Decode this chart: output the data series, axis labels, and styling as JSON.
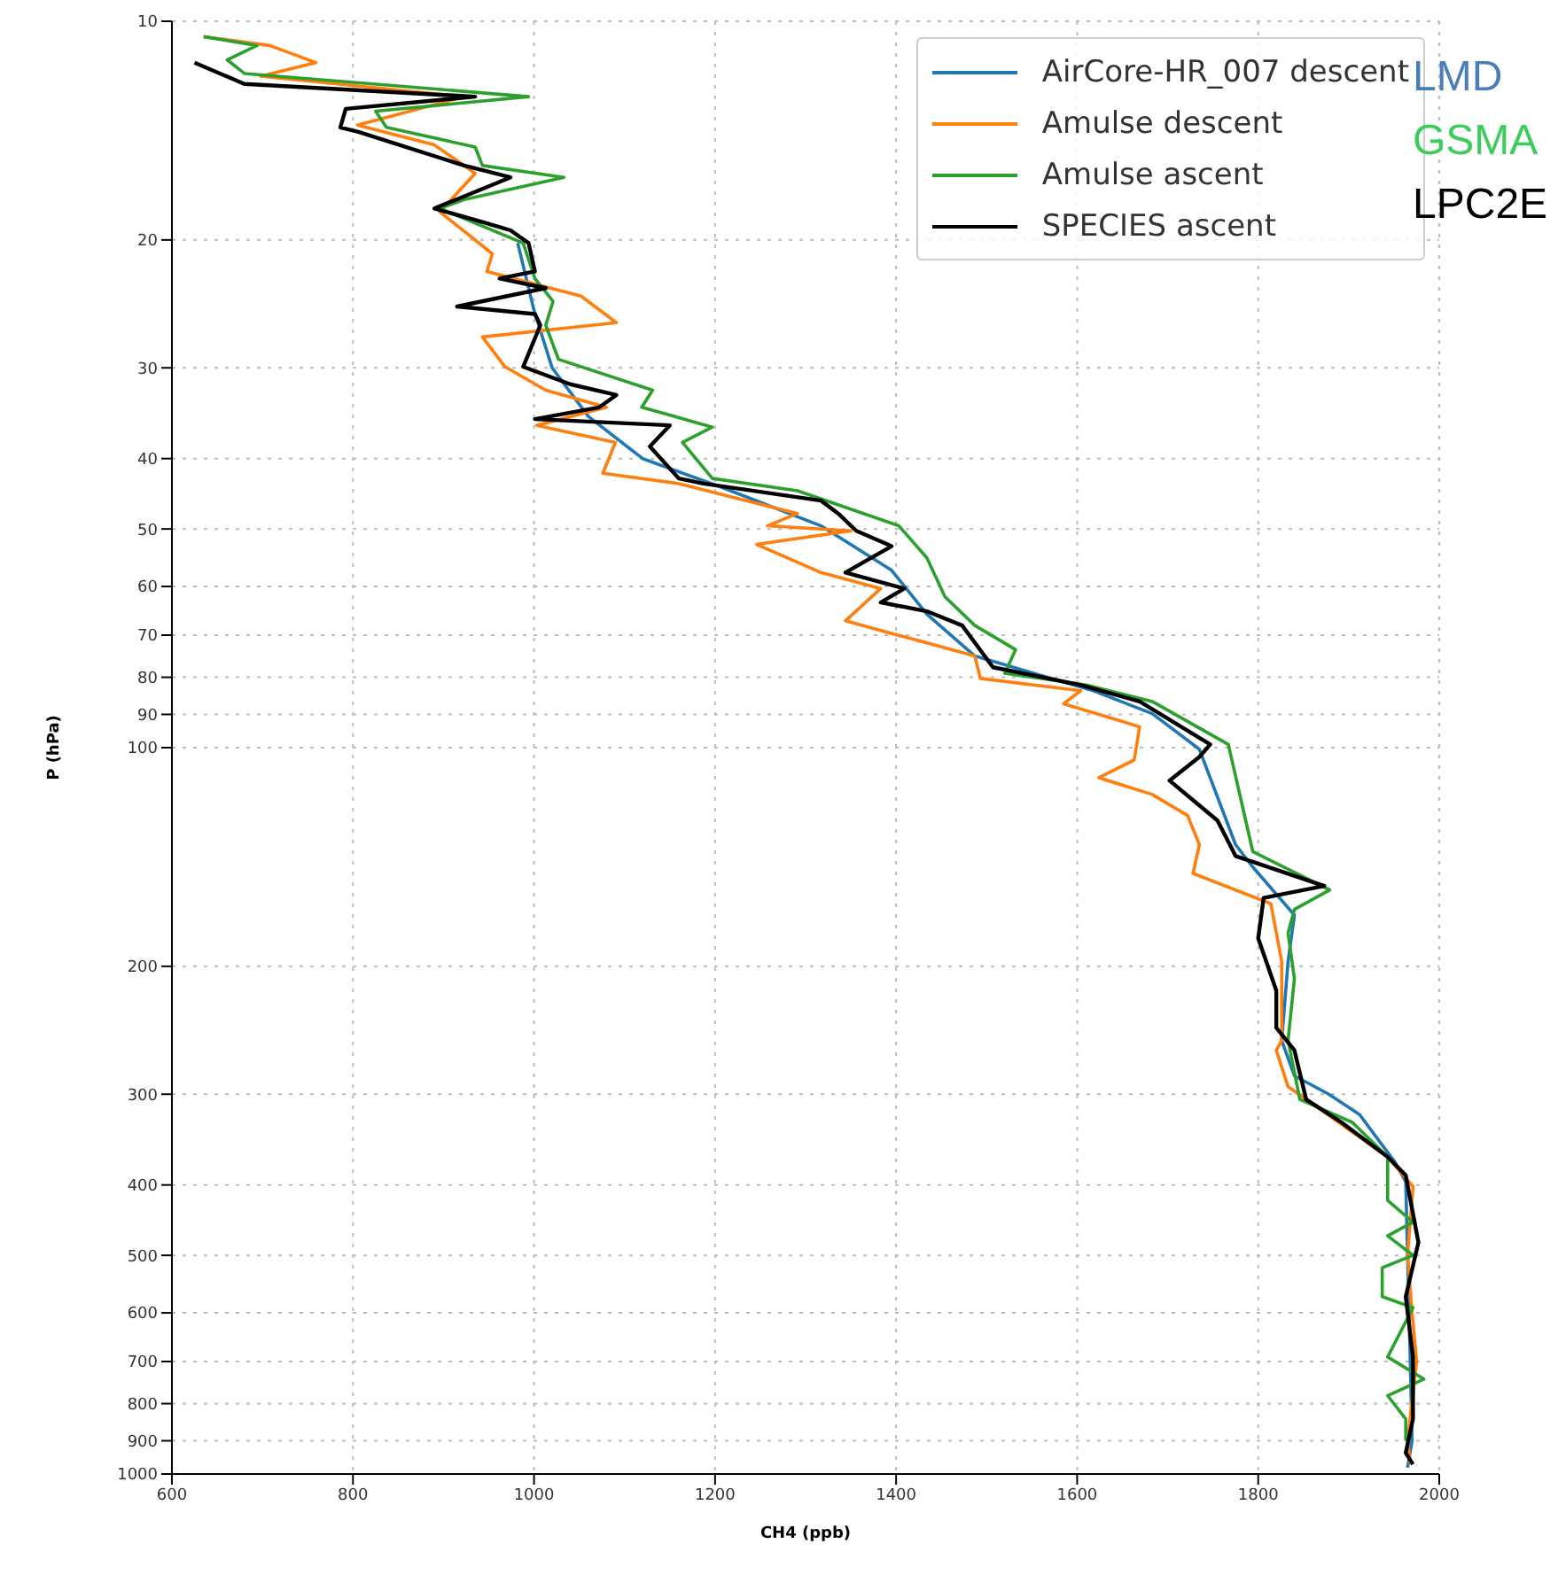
{
  "chart_data": {
    "type": "line",
    "xlabel": "CH4 (ppb)",
    "ylabel": "P (hPa)",
    "xlim": [
      600,
      2000
    ],
    "xticks": [
      600,
      800,
      1000,
      1200,
      1400,
      1600,
      1800,
      2000
    ],
    "ylim": [
      1000,
      10
    ],
    "yticks": [
      10,
      20,
      30,
      40,
      50,
      60,
      70,
      80,
      90,
      100,
      200,
      300,
      400,
      500,
      600,
      700,
      800,
      900,
      1000
    ],
    "log": "y",
    "grid": true,
    "legend": "top right",
    "annotations": [
      "LMD",
      "GSMA",
      "LPC2E"
    ],
    "series": [
      {
        "name": "AirCore-HR_007 descent",
        "color": "#1f77b4",
        "x": [
          982,
          1000,
          1020,
          1060,
          1120,
          1207,
          1317,
          1395,
          1434,
          1487,
          1618,
          1683,
          1735,
          1775,
          1794,
          1840,
          1833,
          1826,
          1840,
          1878,
          1912,
          1951,
          1963,
          1965,
          1968,
          1970,
          1965
        ],
        "values": [
          20.2,
          25,
          30,
          35,
          40,
          43.8,
          49.5,
          57,
          65.5,
          74.8,
          83.5,
          89.8,
          100.5,
          136,
          146,
          170,
          197,
          253,
          283,
          300,
          320,
          372,
          396,
          500,
          700,
          900,
          980
        ]
      },
      {
        "name": "Amulse descent",
        "color": "#ff7f0e",
        "x": [
          635,
          708,
          759,
          698,
          923,
          805,
          890,
          935,
          896,
          954,
          948,
          1052,
          1091,
          943,
          968,
          1013,
          1080,
          1003,
          1090,
          1076,
          1160,
          1291,
          1258,
          1350,
          1246,
          1317,
          1383,
          1344,
          1487,
          1493,
          1604,
          1585,
          1669,
          1663,
          1624,
          1683,
          1722,
          1735,
          1728,
          1814,
          1826,
          1826,
          1820,
          1833,
          1943,
          1971,
          1965,
          1970,
          1975,
          1965,
          1968
        ],
        "values": [
          10.5,
          10.8,
          11.4,
          11.9,
          12.7,
          13.9,
          14.8,
          16.2,
          18.3,
          20.9,
          22.1,
          23.9,
          26,
          27.2,
          29.9,
          32.2,
          34,
          36,
          38,
          41.9,
          43.3,
          47.6,
          49.5,
          50.3,
          52.5,
          57.4,
          60.4,
          66.9,
          74.8,
          80.3,
          83.5,
          87,
          93.6,
          104,
          110,
          116,
          124,
          136,
          149,
          164,
          197,
          253,
          261,
          293,
          366,
          402,
          500,
          600,
          700,
          900,
          970
        ]
      },
      {
        "name": "Amulse ascent",
        "color": "#2ca02c",
        "x": [
          635,
          694,
          661,
          680,
          994,
          825,
          837,
          935,
          943,
          1033,
          923,
          896,
          988,
          1001,
          1021,
          1013,
          1027,
          1131,
          1119,
          1197,
          1164,
          1197,
          1291,
          1403,
          1434,
          1454,
          1487,
          1532,
          1520,
          1610,
          1683,
          1767,
          1794,
          1879,
          1840,
          1833,
          1840,
          1833,
          1846,
          1904,
          1943,
          1943,
          1971,
          1943,
          1971,
          1937,
          1937,
          1971,
          1943,
          1983,
          1943,
          1963,
          1963
        ],
        "values": [
          10.5,
          10.8,
          11.3,
          11.8,
          12.7,
          13.3,
          14,
          14.9,
          15.8,
          16.4,
          17.6,
          18.1,
          20.2,
          22.6,
          24.3,
          26.2,
          29.2,
          32.2,
          34,
          36.2,
          38,
          42.6,
          44.3,
          49.5,
          54.8,
          62,
          67.9,
          73.3,
          79,
          82,
          86.4,
          99,
          139,
          157,
          167,
          180,
          208,
          253,
          305,
          328,
          366,
          420,
          450,
          470,
          500,
          520,
          570,
          590,
          690,
          740,
          780,
          840,
          900
        ]
      },
      {
        "name": "SPECIES ascent",
        "color": "#000000",
        "x": [
          625,
          680,
          935,
          792,
          786,
          806,
          923,
          974,
          890,
          943,
          974,
          994,
          1001,
          962,
          1013,
          915,
          1001,
          1007,
          988,
          1040,
          1091,
          1072,
          1001,
          1150,
          1128,
          1160,
          1187,
          1317,
          1336,
          1356,
          1395,
          1344,
          1409,
          1383,
          1434,
          1473,
          1507,
          1604,
          1669,
          1747,
          1735,
          1702,
          1755,
          1775,
          1873,
          1806,
          1800,
          1820,
          1820,
          1840,
          1853,
          1892,
          1943,
          1963,
          1977,
          1963,
          1971,
          1971,
          1963,
          1971
        ],
        "values": [
          11.4,
          12.2,
          12.7,
          13.2,
          14,
          14.2,
          15.8,
          16.4,
          18.1,
          18.9,
          19.4,
          20.2,
          22.1,
          22.6,
          23.3,
          24.7,
          25.3,
          26.2,
          29.9,
          31.6,
          32.7,
          34,
          35.3,
          36,
          38.5,
          42.6,
          43.3,
          45.7,
          47.6,
          50.3,
          52.8,
          57.4,
          60.4,
          63.1,
          64.9,
          67.9,
          77.5,
          82,
          86.4,
          99,
          103,
          111,
          126,
          141,
          155,
          161,
          183,
          216,
          243,
          261,
          305,
          328,
          366,
          388,
          480,
          570,
          690,
          840,
          935,
          970
        ]
      }
    ]
  }
}
